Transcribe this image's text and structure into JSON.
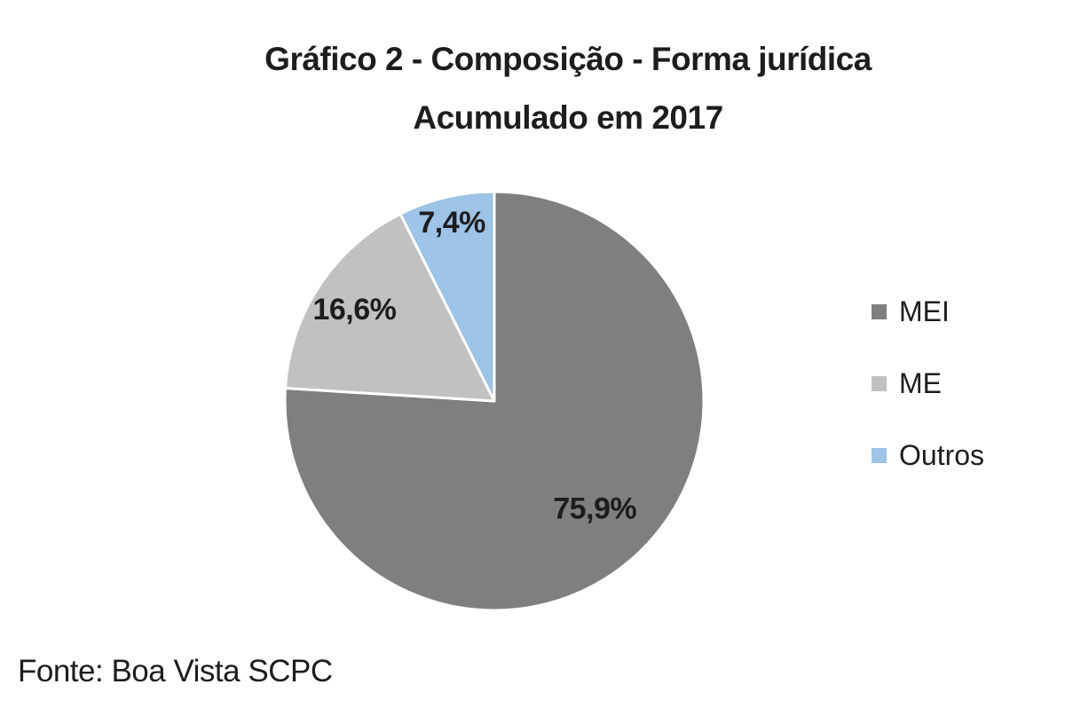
{
  "chart": {
    "title_line1": "Gráfico 2 - Composição - Forma jurídica",
    "title_line2": "Acumulado em 2017",
    "source": "Fonte: Boa Vista SCPC"
  },
  "chart_data": {
    "type": "pie",
    "title": "Gráfico 2 - Composição - Forma jurídica",
    "subtitle": "Acumulado em 2017",
    "categories": [
      "MEI",
      "ME",
      "Outros"
    ],
    "values": [
      75.9,
      16.6,
      7.4
    ],
    "slices": [
      {
        "label": "MEI",
        "value": 75.9,
        "data_label": "75,9%",
        "color": "#7f7f7f",
        "label_r": 0.7
      },
      {
        "label": "ME",
        "value": 16.6,
        "data_label": "16,6%",
        "color": "#c1c1c1",
        "label_r": 0.8
      },
      {
        "label": "Outros",
        "value": 7.4,
        "data_label": "7,4%",
        "color": "#9dc3e6",
        "label_r": 0.88
      }
    ],
    "start_angle_deg": 0,
    "direction": "clockwise",
    "slice_border_color": "#ffffff",
    "legend_position": "right",
    "legend_entries": [
      "MEI",
      "ME",
      "Outros"
    ],
    "source": "Fonte: Boa Vista SCPC"
  }
}
